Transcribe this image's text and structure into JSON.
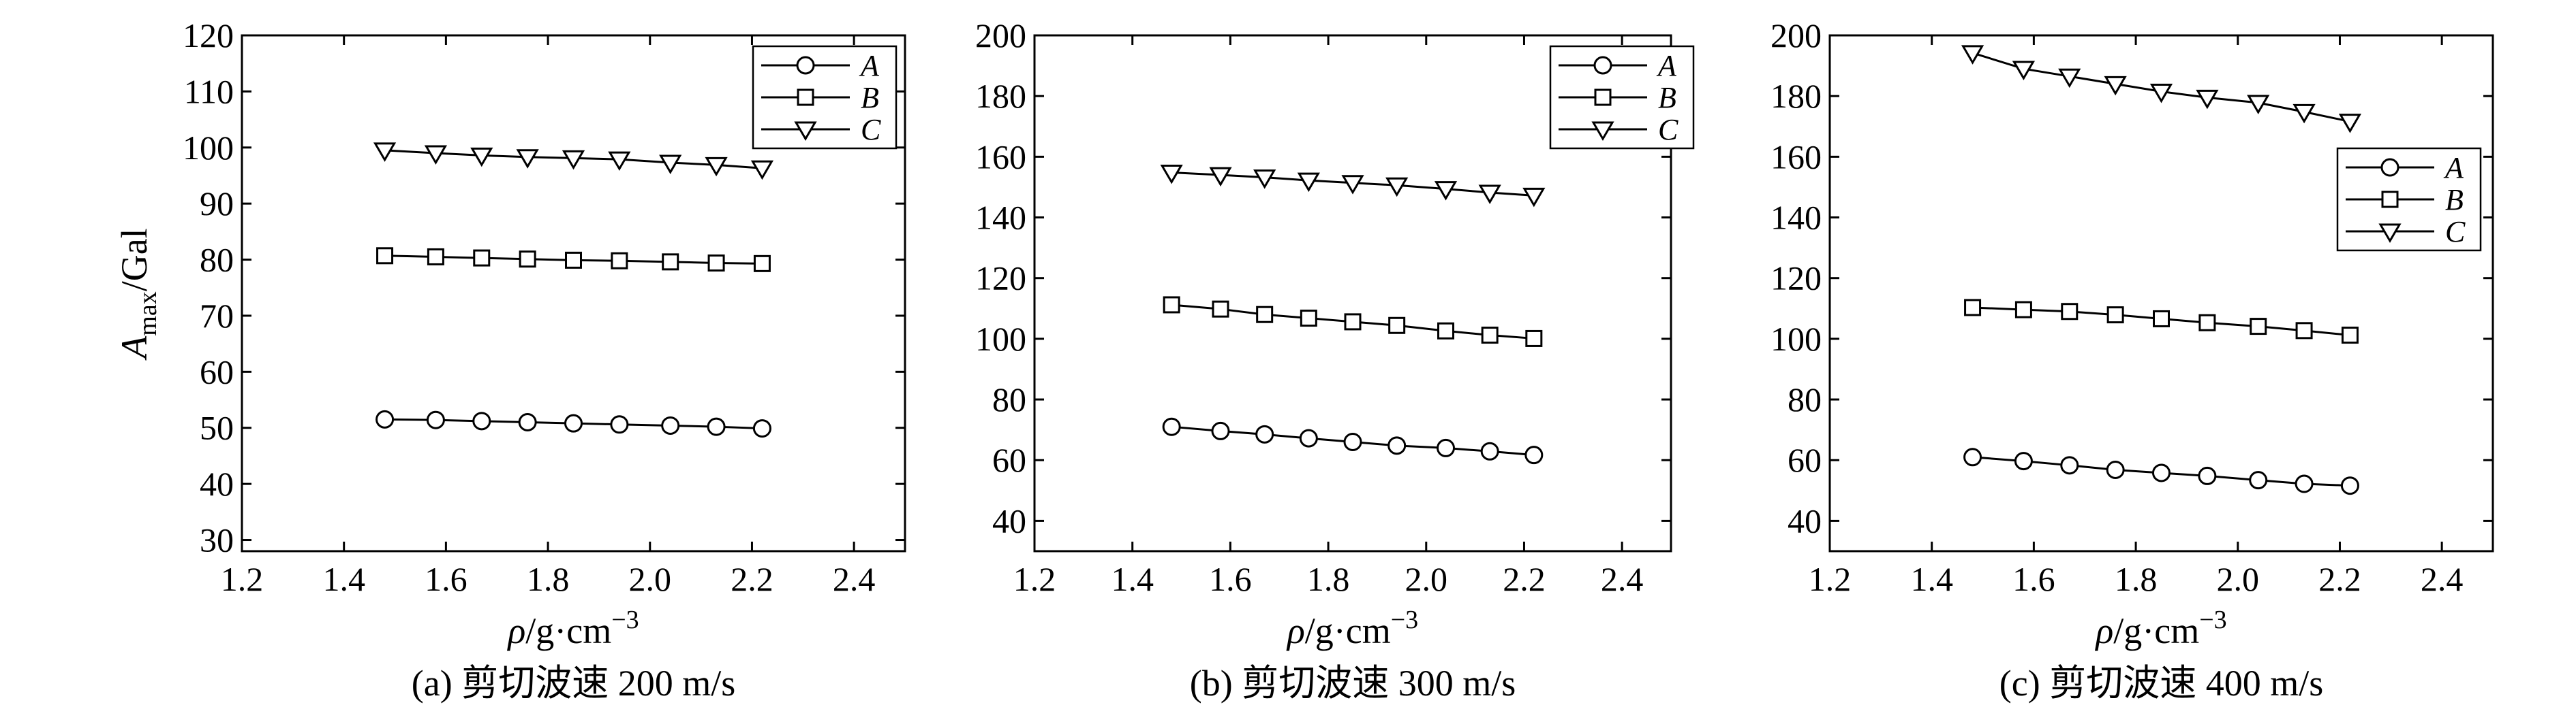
{
  "figure": {
    "ylabel_main": "A",
    "ylabel_sub": "max",
    "ylabel_unit": "/Gal",
    "xlabel_main": "ρ/g·cm",
    "xlabel_sup": "−3"
  },
  "chart_data": [
    {
      "type": "line",
      "caption": "(a) 剪切波速 200 m/s",
      "xlim": [
        1.2,
        2.5
      ],
      "ylim": [
        28,
        120
      ],
      "xticks": [
        "1.2",
        "1.4",
        "1.6",
        "1.8",
        "2.0",
        "2.2",
        "2.4"
      ],
      "yticks": [
        "30",
        "40",
        "50",
        "60",
        "70",
        "80",
        "90",
        "100",
        "110",
        "120"
      ],
      "x": [
        1.48,
        1.58,
        1.67,
        1.76,
        1.85,
        1.94,
        2.04,
        2.13,
        2.22
      ],
      "series": [
        {
          "name": "A",
          "marker": "circle",
          "values": [
            51.5,
            51.4,
            51.2,
            51.0,
            50.8,
            50.6,
            50.4,
            50.2,
            49.9
          ]
        },
        {
          "name": "B",
          "marker": "square",
          "values": [
            80.7,
            80.5,
            80.3,
            80.1,
            79.9,
            79.8,
            79.6,
            79.4,
            79.3
          ]
        },
        {
          "name": "C",
          "marker": "triangle",
          "values": [
            99.5,
            99.0,
            98.6,
            98.3,
            98.1,
            97.9,
            97.3,
            96.9,
            96.3
          ]
        }
      ],
      "legend": "top-right",
      "grid": false
    },
    {
      "type": "line",
      "caption": "(b) 剪切波速 300 m/s",
      "xlim": [
        1.2,
        2.5
      ],
      "ylim": [
        30,
        200
      ],
      "xticks": [
        "1.2",
        "1.4",
        "1.6",
        "1.8",
        "2.0",
        "2.2",
        "2.4"
      ],
      "yticks": [
        "40",
        "60",
        "80",
        "100",
        "120",
        "140",
        "160",
        "180",
        "200"
      ],
      "x": [
        1.48,
        1.58,
        1.67,
        1.76,
        1.85,
        1.94,
        2.04,
        2.13,
        2.22
      ],
      "series": [
        {
          "name": "A",
          "marker": "circle",
          "values": [
            71.0,
            69.6,
            68.5,
            67.2,
            66.0,
            64.8,
            64.0,
            62.9,
            61.7
          ]
        },
        {
          "name": "B",
          "marker": "square",
          "values": [
            111.2,
            109.8,
            108.0,
            106.8,
            105.6,
            104.4,
            102.6,
            101.2,
            100.1
          ]
        },
        {
          "name": "C",
          "marker": "triangle",
          "values": [
            154.8,
            154.0,
            153.2,
            152.2,
            151.4,
            150.6,
            149.4,
            148.2,
            147.2
          ]
        }
      ],
      "legend": "top-right",
      "grid": false
    },
    {
      "type": "line",
      "caption": "(c) 剪切波速 400 m/s",
      "xlim": [
        1.2,
        2.5
      ],
      "ylim": [
        30,
        200
      ],
      "xticks": [
        "1.2",
        "1.4",
        "1.6",
        "1.8",
        "2.0",
        "2.2",
        "2.4"
      ],
      "yticks": [
        "40",
        "60",
        "80",
        "100",
        "120",
        "140",
        "160",
        "180",
        "200"
      ],
      "x": [
        1.48,
        1.58,
        1.67,
        1.76,
        1.85,
        1.94,
        2.04,
        2.13,
        2.22
      ],
      "series": [
        {
          "name": "A",
          "marker": "circle",
          "values": [
            61.0,
            59.7,
            58.3,
            56.8,
            55.8,
            54.8,
            53.4,
            52.2,
            51.6
          ]
        },
        {
          "name": "B",
          "marker": "square",
          "values": [
            110.3,
            109.6,
            109.0,
            107.9,
            106.6,
            105.3,
            104.1,
            102.7,
            101.2
          ]
        },
        {
          "name": "C",
          "marker": "triangle",
          "values": [
            194.2,
            189.0,
            186.5,
            184.0,
            181.5,
            179.5,
            177.8,
            174.8,
            171.6
          ]
        }
      ],
      "legend": "center-right",
      "grid": false
    }
  ]
}
